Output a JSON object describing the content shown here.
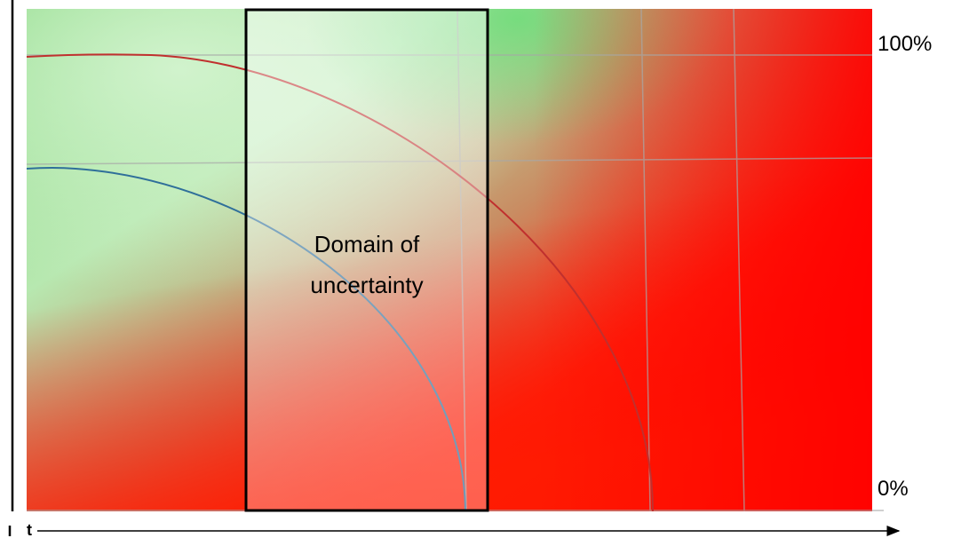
{
  "labels": {
    "top_percent": "100%",
    "bottom_percent": "0%",
    "box_line1": "Domain of",
    "box_line2": "uncertainty",
    "x_axis_letter": "t"
  },
  "colors": {
    "green": "#8fdc8a",
    "light_green": "#c9f0c6",
    "red": "#ff0000",
    "red_curve": "#c0302e",
    "blue_curve": "#2f6f9a",
    "box_border": "#000000",
    "grid": "#a8a8a8"
  }
}
